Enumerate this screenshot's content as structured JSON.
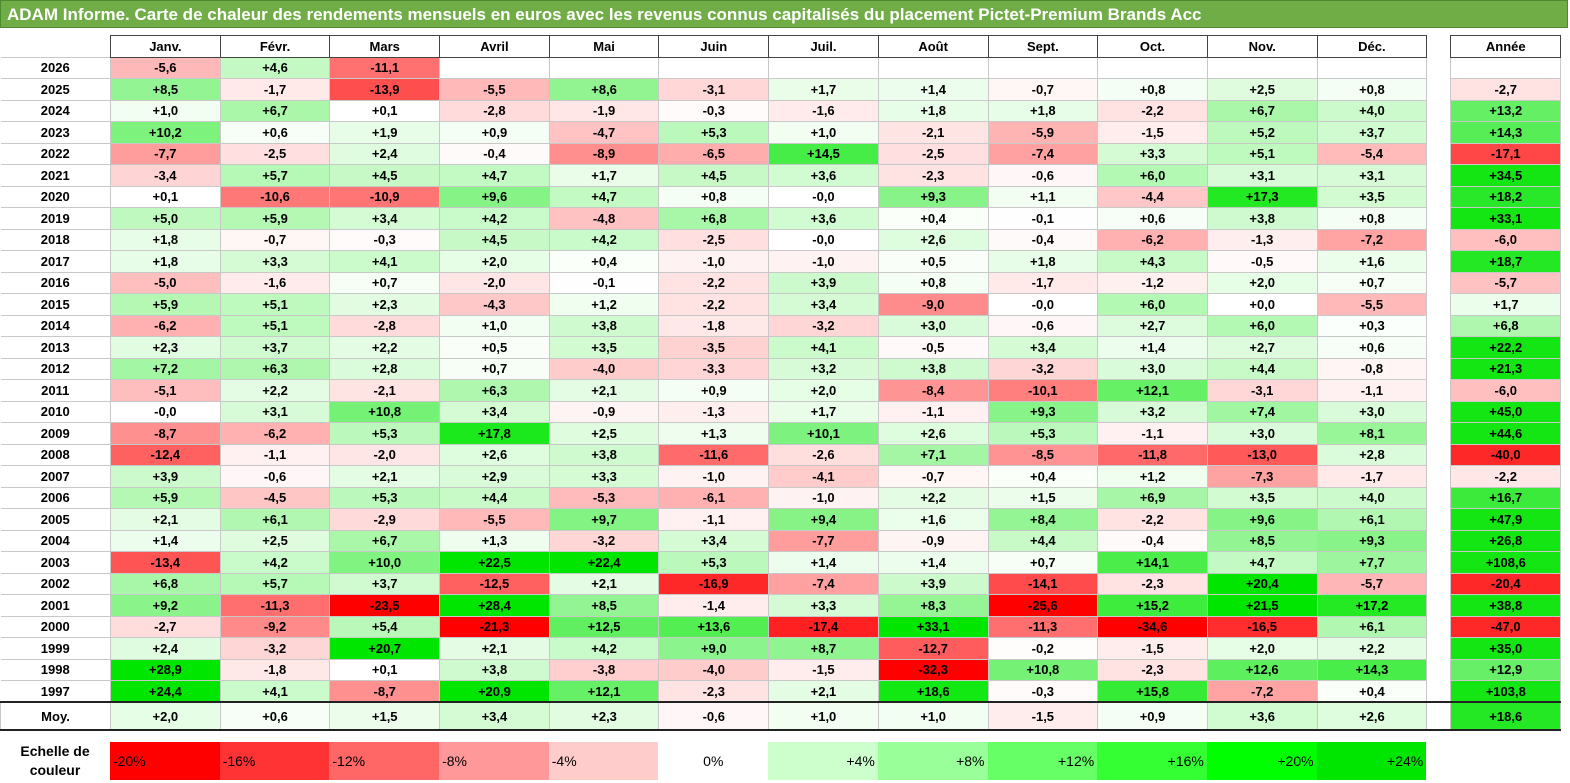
{
  "header": {
    "title": "ADAM Informe. Carte de chaleur des rendements mensuels en euros avec les revenus connus capitalisés du placement Pictet-Premium Brands Acc"
  },
  "chart_data": {
    "type": "heatmap",
    "columns": [
      "Janv.",
      "Févr.",
      "Mars",
      "Avril",
      "Mai",
      "Juin",
      "Juil.",
      "Août",
      "Sept.",
      "Oct.",
      "Nov.",
      "Déc."
    ],
    "year_label": "Année",
    "avg_label": "Moy.",
    "rows": [
      {
        "year": "2026",
        "months": [
          "-5,6",
          "+4,6",
          "-11,1",
          "",
          "",
          "",
          "",
          "",
          "",
          "",
          "",
          ""
        ],
        "annual": ""
      },
      {
        "year": "2025",
        "months": [
          "+8,5",
          "-1,7",
          "-13,9",
          "-5,5",
          "+8,6",
          "-3,1",
          "+1,7",
          "+1,4",
          "-0,7",
          "+0,8",
          "+2,5",
          "+0,8"
        ],
        "annual": "-2,7"
      },
      {
        "year": "2024",
        "months": [
          "+1,0",
          "+6,7",
          "+0,1",
          "-2,8",
          "-1,9",
          "-0,3",
          "-1,6",
          "+1,8",
          "+1,8",
          "-2,2",
          "+6,7",
          "+4,0"
        ],
        "annual": "+13,2"
      },
      {
        "year": "2023",
        "months": [
          "+10,2",
          "+0,6",
          "+1,9",
          "+0,9",
          "-4,7",
          "+5,3",
          "+1,0",
          "-2,1",
          "-5,9",
          "-1,5",
          "+5,2",
          "+3,7"
        ],
        "annual": "+14,3"
      },
      {
        "year": "2022",
        "months": [
          "-7,7",
          "-2,5",
          "+2,4",
          "-0,4",
          "-8,9",
          "-6,5",
          "+14,5",
          "-2,5",
          "-7,4",
          "+3,3",
          "+5,1",
          "-5,4"
        ],
        "annual": "-17,1"
      },
      {
        "year": "2021",
        "months": [
          "-3,4",
          "+5,7",
          "+4,5",
          "+4,7",
          "+1,7",
          "+4,5",
          "+3,6",
          "-2,3",
          "-0,6",
          "+6,0",
          "+3,1",
          "+3,1"
        ],
        "annual": "+34,5"
      },
      {
        "year": "2020",
        "months": [
          "+0,1",
          "-10,6",
          "-10,9",
          "+9,6",
          "+4,7",
          "+0,8",
          "-0,0",
          "+9,3",
          "+1,1",
          "-4,4",
          "+17,3",
          "+3,5"
        ],
        "annual": "+18,2"
      },
      {
        "year": "2019",
        "months": [
          "+5,0",
          "+5,9",
          "+3,4",
          "+4,2",
          "-4,8",
          "+6,8",
          "+3,6",
          "+0,4",
          "-0,1",
          "+0,6",
          "+3,8",
          "+0,8"
        ],
        "annual": "+33,1"
      },
      {
        "year": "2018",
        "months": [
          "+1,8",
          "-0,7",
          "-0,3",
          "+4,5",
          "+4,2",
          "-2,5",
          "-0,0",
          "+2,6",
          "-0,4",
          "-6,2",
          "-1,3",
          "-7,2"
        ],
        "annual": "-6,0"
      },
      {
        "year": "2017",
        "months": [
          "+1,8",
          "+3,3",
          "+4,1",
          "+2,0",
          "+0,4",
          "-1,0",
          "-1,0",
          "+0,5",
          "+1,8",
          "+4,3",
          "-0,5",
          "+1,6"
        ],
        "annual": "+18,7"
      },
      {
        "year": "2016",
        "months": [
          "-5,0",
          "-1,6",
          "+0,7",
          "-2,0",
          "-0,1",
          "-2,2",
          "+3,9",
          "+0,8",
          "-1,7",
          "-1,2",
          "+2,0",
          "+0,7"
        ],
        "annual": "-5,7"
      },
      {
        "year": "2015",
        "months": [
          "+5,9",
          "+5,1",
          "+2,3",
          "-4,3",
          "+1,2",
          "-2,2",
          "+3,4",
          "-9,0",
          "-0,0",
          "+6,0",
          "+0,0",
          "-5,5"
        ],
        "annual": "+1,7"
      },
      {
        "year": "2014",
        "months": [
          "-6,2",
          "+5,1",
          "-2,8",
          "+1,0",
          "+3,8",
          "-1,8",
          "-3,2",
          "+3,0",
          "-0,6",
          "+2,7",
          "+6,0",
          "+0,3"
        ],
        "annual": "+6,8"
      },
      {
        "year": "2013",
        "months": [
          "+2,3",
          "+3,7",
          "+2,2",
          "+0,5",
          "+3,5",
          "-3,5",
          "+4,1",
          "-0,5",
          "+3,4",
          "+1,4",
          "+2,7",
          "+0,6"
        ],
        "annual": "+22,2"
      },
      {
        "year": "2012",
        "months": [
          "+7,2",
          "+6,3",
          "+2,8",
          "+0,7",
          "-4,0",
          "-3,3",
          "+3,2",
          "+3,8",
          "-3,2",
          "+3,0",
          "+4,4",
          "-0,8"
        ],
        "annual": "+21,3"
      },
      {
        "year": "2011",
        "months": [
          "-5,1",
          "+2,2",
          "-2,1",
          "+6,3",
          "+2,1",
          "+0,9",
          "+2,0",
          "-8,4",
          "-10,1",
          "+12,1",
          "-3,1",
          "-1,1"
        ],
        "annual": "-6,0"
      },
      {
        "year": "2010",
        "months": [
          "-0,0",
          "+3,1",
          "+10,8",
          "+3,4",
          "-0,9",
          "-1,3",
          "+1,7",
          "-1,1",
          "+9,3",
          "+3,2",
          "+7,4",
          "+3,0"
        ],
        "annual": "+45,0"
      },
      {
        "year": "2009",
        "months": [
          "-8,7",
          "-6,2",
          "+5,3",
          "+17,8",
          "+2,5",
          "+1,3",
          "+10,1",
          "+2,6",
          "+5,3",
          "-1,1",
          "+3,0",
          "+8,1"
        ],
        "annual": "+44,6"
      },
      {
        "year": "2008",
        "months": [
          "-12,4",
          "-1,1",
          "-2,0",
          "+2,6",
          "+3,8",
          "-11,6",
          "-2,6",
          "+7,1",
          "-8,5",
          "-11,8",
          "-13,0",
          "+2,8"
        ],
        "annual": "-40,0"
      },
      {
        "year": "2007",
        "months": [
          "+3,9",
          "-0,6",
          "+2,1",
          "+2,9",
          "+3,3",
          "-1,0",
          "-4,1",
          "-0,7",
          "+0,4",
          "+1,2",
          "-7,3",
          "-1,7"
        ],
        "annual": "-2,2"
      },
      {
        "year": "2006",
        "months": [
          "+5,9",
          "-4,5",
          "+5,3",
          "+4,4",
          "-5,3",
          "-6,1",
          "-1,0",
          "+2,2",
          "+1,5",
          "+6,9",
          "+3,5",
          "+4,0"
        ],
        "annual": "+16,7"
      },
      {
        "year": "2005",
        "months": [
          "+2,1",
          "+6,1",
          "-2,9",
          "-5,5",
          "+9,7",
          "-1,1",
          "+9,4",
          "+1,6",
          "+8,4",
          "-2,2",
          "+9,6",
          "+6,1"
        ],
        "annual": "+47,9"
      },
      {
        "year": "2004",
        "months": [
          "+1,4",
          "+2,5",
          "+6,7",
          "+1,3",
          "-3,2",
          "+3,4",
          "-7,7",
          "-0,9",
          "+4,4",
          "-0,4",
          "+8,5",
          "+9,3"
        ],
        "annual": "+26,8"
      },
      {
        "year": "2003",
        "months": [
          "-13,4",
          "+4,2",
          "+10,0",
          "+22,5",
          "+22,4",
          "+5,3",
          "+1,4",
          "+1,4",
          "+0,7",
          "+14,1",
          "+4,7",
          "+7,7"
        ],
        "annual": "+108,6"
      },
      {
        "year": "2002",
        "months": [
          "+6,8",
          "+5,7",
          "+3,7",
          "-12,5",
          "+2,1",
          "-16,9",
          "-7,4",
          "+3,9",
          "-14,1",
          "-2,3",
          "+20,4",
          "-5,7"
        ],
        "annual": "-20,4"
      },
      {
        "year": "2001",
        "months": [
          "+9,2",
          "-11,3",
          "-23,5",
          "+28,4",
          "+8,5",
          "-1,4",
          "+3,3",
          "+8,3",
          "-25,6",
          "+15,2",
          "+21,5",
          "+17,2"
        ],
        "annual": "+38,8"
      },
      {
        "year": "2000",
        "months": [
          "-2,7",
          "-9,2",
          "+5,4",
          "-21,3",
          "+12,5",
          "+13,6",
          "-17,4",
          "+33,1",
          "-11,3",
          "-34,6",
          "-16,5",
          "+6,1"
        ],
        "annual": "-47,0"
      },
      {
        "year": "1999",
        "months": [
          "+2,4",
          "-3,2",
          "+20,7",
          "+2,1",
          "+4,2",
          "+9,0",
          "+8,7",
          "-12,7",
          "-0,2",
          "-1,5",
          "+2,0",
          "+2,2"
        ],
        "annual": "+35,0"
      },
      {
        "year": "1998",
        "months": [
          "+28,9",
          "-1,8",
          "+0,1",
          "+3,8",
          "-3,8",
          "-4,0",
          "-1,5",
          "-32,3",
          "+10,8",
          "-2,3",
          "+12,6",
          "+14,3"
        ],
        "annual": "+12,9"
      },
      {
        "year": "1997",
        "months": [
          "+24,4",
          "+4,1",
          "-8,7",
          "+20,9",
          "+12,1",
          "-2,3",
          "+2,1",
          "+18,6",
          "-0,3",
          "+15,8",
          "-7,2",
          "+0,4"
        ],
        "annual": "+103,8"
      }
    ],
    "average": {
      "label": "Moy.",
      "months": [
        "+2,0",
        "+0,6",
        "+1,5",
        "+3,4",
        "+2,3",
        "-0,6",
        "+1,0",
        "+1,0",
        "-1,5",
        "+0,9",
        "+3,6",
        "+2,6"
      ],
      "annual": "+18,6"
    },
    "scale": {
      "label": "Echelle de couleur",
      "steps": [
        {
          "text": "-20%",
          "color": "#ff0000"
        },
        {
          "text": "-16%",
          "color": "#ff3333"
        },
        {
          "text": "-12%",
          "color": "#ff6666"
        },
        {
          "text": "-8%",
          "color": "#ff9999"
        },
        {
          "text": "-4%",
          "color": "#ffcccc"
        },
        {
          "text": "0%",
          "color": "#ffffff"
        },
        {
          "text": "+4%",
          "color": "#ccffcc"
        },
        {
          "text": "+8%",
          "color": "#99ff99"
        },
        {
          "text": "+12%",
          "color": "#66ff66"
        },
        {
          "text": "+16%",
          "color": "#33ff33"
        },
        {
          "text": "+20%",
          "color": "#00ff00"
        },
        {
          "text": "+24%",
          "color": "#00e600"
        }
      ]
    },
    "colors": {
      "negative_max": "#ff0000",
      "neutral": "#ffffff",
      "positive_max": "#00ff00",
      "banner": "#70ad47"
    }
  }
}
